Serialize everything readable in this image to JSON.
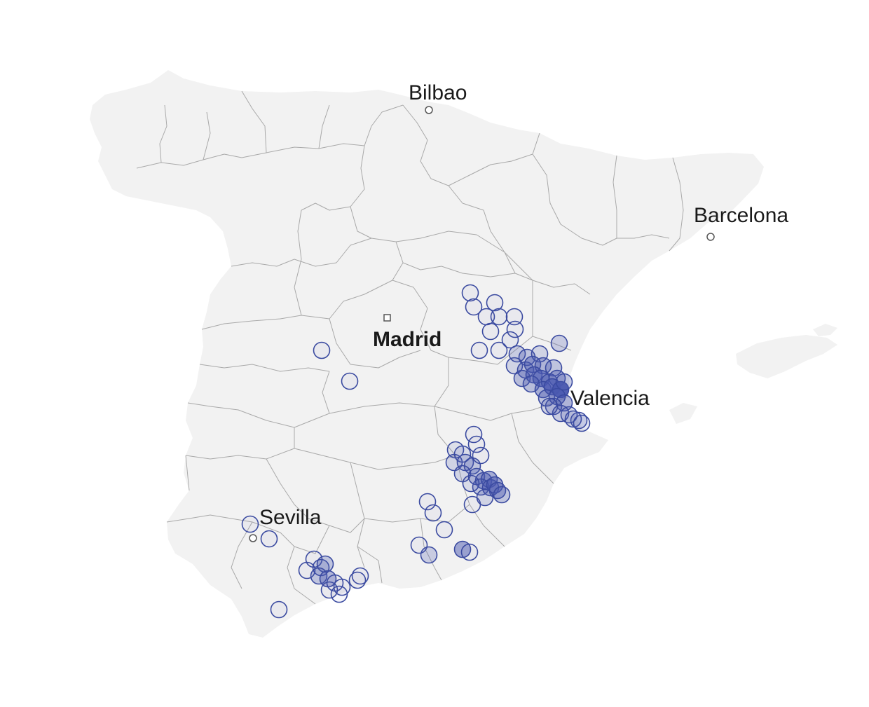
{
  "map": {
    "country": "Spain",
    "colors": {
      "land": "#f2f2f2",
      "borders": "#a9a9a9",
      "marker_stroke": "#3a4aa0",
      "marker_fill": "#4a58b0",
      "label": "#1a1a1a"
    },
    "cities": [
      {
        "id": "bilbao",
        "label": "Bilbao",
        "capital": false
      },
      {
        "id": "barcelona",
        "label": "Barcelona",
        "capital": false
      },
      {
        "id": "madrid",
        "label": "Madrid",
        "capital": true
      },
      {
        "id": "valencia",
        "label": "Valencia",
        "capital": false
      },
      {
        "id": "sevilla",
        "label": "Sevilla",
        "capital": false
      }
    ],
    "marker_clusters": [
      {
        "region": "Valencia / Castellón",
        "intensity": "high"
      },
      {
        "region": "Murcia / Albacete",
        "intensity": "medium"
      },
      {
        "region": "Málaga",
        "intensity": "medium"
      },
      {
        "region": "Granada / Almería",
        "intensity": "low"
      },
      {
        "region": "Toledo",
        "intensity": "low"
      },
      {
        "region": "Sevilla",
        "intensity": "low"
      }
    ]
  }
}
